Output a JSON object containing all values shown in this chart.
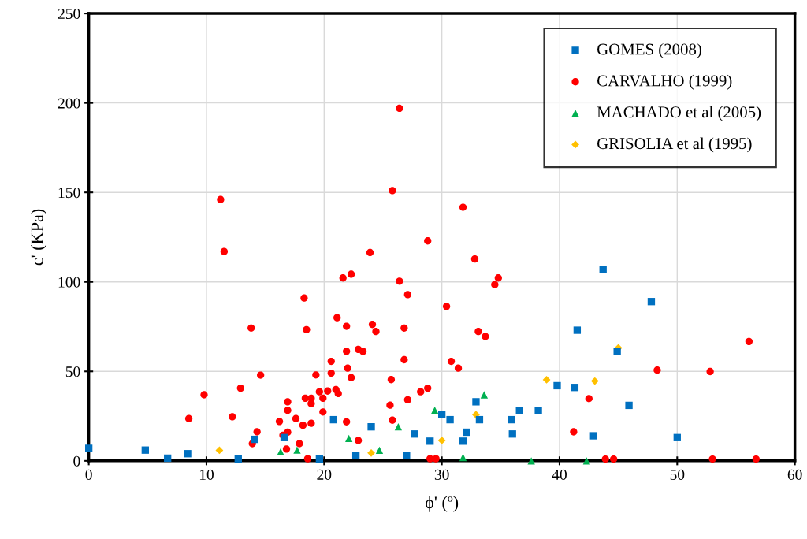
{
  "chart_data": {
    "type": "scatter",
    "xlabel": "ϕ' (º)",
    "ylabel": "c' (KPa)",
    "xlim": [
      0,
      60
    ],
    "ylim": [
      0,
      250
    ],
    "xticks": [
      0,
      10,
      20,
      30,
      40,
      50,
      60
    ],
    "yticks": [
      0,
      50,
      100,
      150,
      200,
      250
    ],
    "grid": true,
    "legend": "top right",
    "series": [
      {
        "name": "GOMES (2008)",
        "color": "#0070c0",
        "marker": "square",
        "x": [
          0,
          4.8,
          6.7,
          8.4,
          12.7,
          14.1,
          16.6,
          19.6,
          20.8,
          22.7,
          24,
          27,
          27.7,
          29,
          30,
          30.7,
          31.8,
          32.1,
          32.9,
          33.2,
          35.9,
          36,
          36.6,
          38.2,
          39.8,
          41.3,
          41.5,
          42.9,
          43.7,
          44.9,
          45.9,
          47.8,
          50
        ],
        "values": [
          7,
          6,
          1.5,
          4,
          1,
          12,
          13,
          1,
          23,
          3,
          19,
          3,
          15,
          11,
          26,
          23,
          11,
          16,
          33,
          23,
          23,
          15,
          28,
          28,
          42,
          41,
          73,
          14,
          107,
          61,
          31,
          89,
          13
        ]
      },
      {
        "name": "CARVALHO (1999)",
        "color": "#ff0000",
        "marker": "circle",
        "x": [
          11.2,
          11.5,
          8.5,
          9.8,
          12.2,
          12.9,
          13.8,
          14.6,
          14.3,
          13.9,
          16.2,
          16.5,
          16.9,
          16.9,
          16.9,
          16.8,
          17.6,
          18.2,
          17.9,
          18.3,
          18.5,
          18.4,
          18.9,
          18.9,
          18.9,
          18.6,
          19.3,
          19.6,
          19.9,
          19.9,
          20.6,
          20.6,
          20.3,
          21,
          21.2,
          26.4,
          25.8,
          31.8,
          28.8,
          23.9,
          32.8,
          21.6,
          22.3,
          34.8,
          34.5,
          26.4,
          27.1,
          30.4,
          21.1,
          21.9,
          24.1,
          24.4,
          26.8,
          33.1,
          33.7,
          21.9,
          22.9,
          23.3,
          26.8,
          30.8,
          31.4,
          22,
          22.3,
          25.7,
          28.2,
          28.8,
          27.1,
          25.6,
          25.8,
          21.9,
          22.9,
          29.0,
          29.5,
          48.3,
          52.8,
          56.1,
          42.5,
          41.2,
          43.9,
          44.6,
          53,
          56.7
        ],
        "values": [
          146,
          117,
          23.6,
          36.9,
          24.6,
          40.6,
          74.2,
          47.9,
          16.2,
          9.6,
          22,
          14.3,
          16,
          33,
          28.2,
          6.6,
          23.6,
          19.9,
          9.6,
          91,
          73.3,
          35,
          35,
          32,
          21,
          1.2,
          48,
          38.6,
          35,
          27.3,
          55.6,
          49,
          39,
          39.8,
          37.6,
          197,
          151,
          141.7,
          122.9,
          116.4,
          112.8,
          102.2,
          104.3,
          102.2,
          98.5,
          100.4,
          92.9,
          86.3,
          80,
          75.2,
          76.2,
          72.3,
          74.2,
          72.3,
          69.5,
          61.2,
          62.3,
          61.2,
          56.5,
          55.6,
          51.8,
          51.8,
          46.5,
          45.4,
          38.6,
          40.6,
          34.1,
          31.1,
          22.7,
          21.8,
          11.4,
          1.2,
          1.2,
          50.7,
          49.9,
          66.7,
          34.8,
          16.2,
          1,
          1,
          1,
          1
        ]
      },
      {
        "name": "MACHADO et al (2005)",
        "color": "#00b050",
        "marker": "triangle",
        "x": [
          16.3,
          17.7,
          22.1,
          24.7,
          26.3,
          29.4,
          33.6,
          31.8,
          37.6,
          42.3
        ],
        "values": [
          5,
          6,
          12.5,
          5.9,
          19,
          28.3,
          36.9,
          1.9,
          0,
          0
        ]
      },
      {
        "name": "GRISOLIA et al (1995)",
        "color": "#ffc000",
        "marker": "diamond",
        "x": [
          11.1,
          24,
          30,
          32.9,
          38.9,
          43,
          45
        ],
        "values": [
          5.9,
          4.4,
          11.4,
          25.8,
          45.3,
          44.6,
          63.1
        ]
      }
    ]
  }
}
